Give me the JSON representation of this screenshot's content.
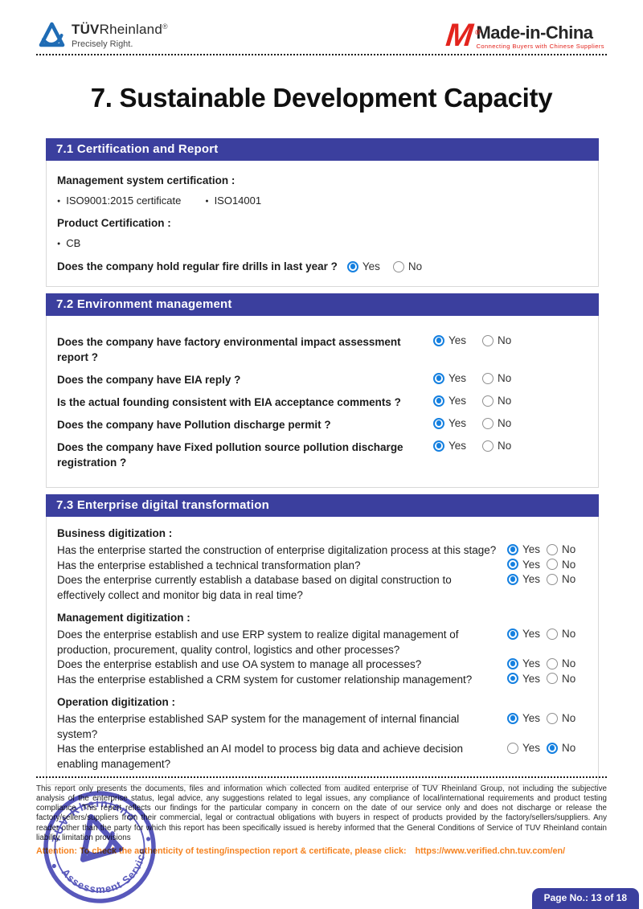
{
  "header": {
    "tuv_logo": {
      "brand_bold": "TÜV",
      "brand_rest": "Rheinland",
      "registered": "®",
      "tagline": "Precisely Right."
    },
    "mic_logo": {
      "m": "M",
      "registered": "®",
      "brand": "Made-in-China",
      "tagline": "Connecting Buyers with Chinese Suppliers"
    }
  },
  "page_title": "7. Sustainable Development Capacity",
  "radio": {
    "yes_label": "Yes",
    "no_label": "No"
  },
  "sections": [
    {
      "title": "7.1 Certification and Report",
      "layout": "plain",
      "blocks": [
        {
          "type": "label",
          "text": "Management system certification :"
        },
        {
          "type": "bullets",
          "items": [
            "ISO9001:2015 certificate",
            "ISO14001"
          ]
        },
        {
          "type": "label",
          "text": "Product Certification :"
        },
        {
          "type": "bullets",
          "items": [
            "CB"
          ]
        },
        {
          "type": "inline-question",
          "text": "Does the company hold regular fire drills in last year ?",
          "answer": "Yes"
        }
      ]
    },
    {
      "title": "7.2 Environment management",
      "layout": "spread",
      "blocks": [
        {
          "type": "question",
          "text": "Does the company have factory environmental impact assessment report ?",
          "answer": "Yes"
        },
        {
          "type": "question",
          "text": "Does the company have EIA reply ?",
          "answer": "Yes"
        },
        {
          "type": "question",
          "text": "Is the actual founding consistent with EIA acceptance comments ?",
          "answer": "Yes"
        },
        {
          "type": "question",
          "text": "Does the company have Pollution discharge permit ?",
          "answer": "Yes"
        },
        {
          "type": "question",
          "text": "Does the company have Fixed pollution source pollution discharge registration ?",
          "answer": "Yes"
        }
      ]
    },
    {
      "title": "7.3 Enterprise digital transformation",
      "layout": "tight",
      "blocks": [
        {
          "type": "label",
          "text": "Business digitization :"
        },
        {
          "type": "question",
          "text": "Has the enterprise started the construction of enterprise digitalization process at this stage?",
          "answer": "Yes"
        },
        {
          "type": "question",
          "text": "Has the enterprise established a technical transformation plan?",
          "answer": "Yes"
        },
        {
          "type": "question",
          "text": "Does the enterprise currently establish a database based on digital construction to effectively collect and monitor big data in real time?",
          "answer": "Yes"
        },
        {
          "type": "label",
          "text": "Management digitization :"
        },
        {
          "type": "question",
          "text": "Does the enterprise establish and use ERP system to realize digital management of production, procurement, quality control, logistics and other processes?",
          "answer": "Yes"
        },
        {
          "type": "question",
          "text": "Does the enterprise establish and use OA system to manage all processes?",
          "answer": "Yes"
        },
        {
          "type": "question",
          "text": "Has the enterprise established a CRM system for customer relationship management?",
          "answer": "Yes"
        },
        {
          "type": "label",
          "text": "Operation digitization :"
        },
        {
          "type": "question",
          "text": "Has the enterprise established SAP system for the management of internal financial system?",
          "answer": "Yes"
        },
        {
          "type": "question",
          "text": "Has the enterprise established an AI model to process big data and achieve decision enabling management?",
          "answer": "No"
        }
      ]
    }
  ],
  "footer": {
    "disclaimer": "This report only presents the documents, files and information which collected from audited enterprise of TUV Rheinland Group, not including the subjective analysis of the enterprise status, legal advice, any suggestions related to legal issues, any compliance of local/international requirements and product testing compliance. This report reflects our findings for the particular company in concern on the date of our service only and does not discharge or release the factory/sellers/suppliers from their commercial, legal or contractual obligations with buyers in respect of products provided by the factory/sellers/suppliers. Any reader other than the party for which this report has been specifically issued is hereby informed that the General Conditions of Service of TUV Rheinland contain liability limitation provisions",
    "attention_prefix": "Attention:  To check the authenticity of testing/inspection report & certificate, please click:",
    "attention_url": "https://www.verified.chn.tuv.com/en/",
    "page_badge": "Page No.: 13 of 18",
    "stamp": {
      "top_text": "TÜV Rheinland",
      "bottom_text": "Assessment Service"
    }
  },
  "colors": {
    "section_header_bg": "#3b3f9e",
    "radio_selected": "#1580e0",
    "attention_orange": "#f5821f",
    "stamp_blue": "#4646b4",
    "mic_red": "#e3241d",
    "tuv_blue": "#1f6cb5"
  }
}
